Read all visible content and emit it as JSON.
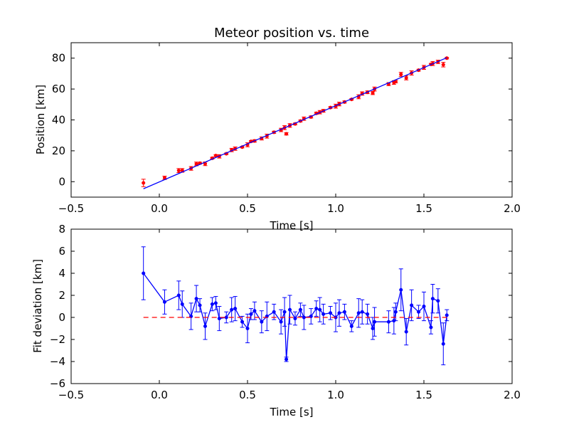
{
  "chart_data": [
    {
      "type": "scatter",
      "title": "Meteor position vs. time",
      "xlabel": "Time [s]",
      "ylabel": "Position [km]",
      "xlim": [
        -0.5,
        2.0
      ],
      "ylim": [
        -10,
        90
      ],
      "xticks": [
        -0.5,
        0.0,
        0.5,
        1.0,
        1.5,
        2.0
      ],
      "xtick_labels": [
        "−0.5",
        "0.0",
        "0.5",
        "1.0",
        "1.5",
        "2.0"
      ],
      "yticks": [
        0,
        20,
        40,
        60,
        80
      ],
      "ytick_labels": [
        "0",
        "20",
        "40",
        "60",
        "80"
      ],
      "grid": false,
      "series": [
        {
          "kind": "points-with-errorbars",
          "color": "#ff0000",
          "x": [
            -0.09,
            0.03,
            0.11,
            0.13,
            0.18,
            0.21,
            0.23,
            0.26,
            0.3,
            0.32,
            0.34,
            0.38,
            0.41,
            0.43,
            0.47,
            0.5,
            0.52,
            0.54,
            0.58,
            0.61,
            0.65,
            0.69,
            0.71,
            0.72,
            0.74,
            0.77,
            0.8,
            0.82,
            0.86,
            0.89,
            0.91,
            0.93,
            0.97,
            1.0,
            1.02,
            1.05,
            1.09,
            1.13,
            1.15,
            1.18,
            1.21,
            1.22,
            1.3,
            1.33,
            1.34,
            1.37,
            1.4,
            1.43,
            1.47,
            1.5,
            1.54,
            1.55,
            1.58,
            1.61,
            1.63
          ],
          "y": [
            -0.8,
            2.5,
            7.2,
            7.3,
            8.6,
            11.5,
            12.0,
            11.6,
            15.2,
            16.9,
            16.4,
            18.1,
            20.5,
            21.4,
            22.4,
            23.9,
            26.1,
            26.4,
            28.0,
            29.5,
            32.0,
            33.5,
            35.0,
            31.0,
            36.4,
            37.4,
            39.3,
            40.8,
            41.9,
            44.3,
            45.0,
            45.9,
            48.0,
            48.9,
            50.3,
            51.6,
            53.3,
            55.0,
            57.1,
            57.9,
            57.4,
            60.0,
            63.2,
            64.2,
            64.8,
            69.5,
            67.2,
            70.4,
            72.2,
            74.0,
            76.0,
            76.5,
            77.6,
            75.8,
            80.0
          ],
          "yerr": [
            2.4,
            1.1,
            1.3,
            1.2,
            1.2,
            1.2,
            0.6,
            1.2,
            0.6,
            0.6,
            1.1,
            0.5,
            1.1,
            1.1,
            0.5,
            1.3,
            0.5,
            0.8,
            1.0,
            1.3,
            0.7,
            1.1,
            1.3,
            0.8,
            1.2,
            0.6,
            0.6,
            1.1,
            0.7,
            0.7,
            1.1,
            0.9,
            0.6,
            1.3,
            1.2,
            0.7,
            0.5,
            1.3,
            1.1,
            0.9,
            1.0,
            1.3,
            1.0,
            1.2,
            0.8,
            1.3,
            1.3,
            1.4,
            0.6,
            1.3,
            0.6,
            1.3,
            1.1,
            1.5,
            0.5
          ]
        },
        {
          "kind": "fit-line",
          "color": "#0000ff",
          "x": [
            -0.09,
            1.63
          ],
          "y": [
            -4.6,
            80.3
          ]
        }
      ]
    },
    {
      "type": "line",
      "title": "",
      "xlabel": "Time [s]",
      "ylabel": "Fit deviation [km]",
      "xlim": [
        -0.5,
        2.0
      ],
      "ylim": [
        -6,
        8
      ],
      "xticks": [
        -0.5,
        0.0,
        0.5,
        1.0,
        1.5,
        2.0
      ],
      "xtick_labels": [
        "−0.5",
        "0.0",
        "0.5",
        "1.0",
        "1.5",
        "2.0"
      ],
      "yticks": [
        -6,
        -4,
        -2,
        0,
        2,
        4,
        6,
        8
      ],
      "ytick_labels": [
        "−6",
        "−4",
        "−2",
        "0",
        "2",
        "4",
        "6",
        "8"
      ],
      "grid": false,
      "series": [
        {
          "kind": "line-with-errorbars",
          "color": "#0000ff",
          "x": [
            -0.09,
            0.03,
            0.11,
            0.13,
            0.18,
            0.21,
            0.23,
            0.26,
            0.3,
            0.32,
            0.34,
            0.38,
            0.41,
            0.43,
            0.47,
            0.5,
            0.52,
            0.54,
            0.58,
            0.61,
            0.65,
            0.69,
            0.71,
            0.72,
            0.74,
            0.77,
            0.8,
            0.82,
            0.86,
            0.89,
            0.91,
            0.93,
            0.97,
            1.0,
            1.02,
            1.05,
            1.09,
            1.13,
            1.15,
            1.18,
            1.21,
            1.22,
            1.3,
            1.33,
            1.34,
            1.37,
            1.4,
            1.43,
            1.47,
            1.5,
            1.54,
            1.55,
            1.58,
            1.61,
            1.63
          ],
          "y": [
            4.0,
            1.4,
            2.0,
            1.2,
            0.1,
            1.7,
            1.1,
            -0.8,
            1.2,
            1.3,
            -0.1,
            0.0,
            0.7,
            0.8,
            -0.4,
            -1.0,
            0.3,
            0.6,
            -0.4,
            0.1,
            0.5,
            -0.4,
            0.5,
            -3.8,
            0.7,
            -0.1,
            0.7,
            0.0,
            0.1,
            0.8,
            0.7,
            0.3,
            0.4,
            0.0,
            0.4,
            0.5,
            -0.8,
            0.4,
            0.5,
            0.3,
            -1.0,
            -0.4,
            -0.4,
            -0.3,
            0.5,
            2.5,
            -1.3,
            1.1,
            0.5,
            1.0,
            -0.9,
            1.7,
            1.5,
            -2.4,
            0.2
          ],
          "yerr": [
            2.4,
            1.1,
            1.3,
            1.2,
            1.2,
            1.2,
            0.6,
            1.2,
            0.6,
            0.6,
            1.1,
            0.5,
            1.1,
            1.1,
            0.5,
            1.3,
            0.5,
            0.8,
            1.0,
            1.3,
            0.7,
            1.1,
            1.3,
            0.2,
            1.3,
            0.6,
            0.6,
            1.1,
            0.7,
            0.7,
            1.1,
            0.9,
            0.6,
            1.3,
            1.2,
            0.7,
            0.5,
            1.3,
            1.1,
            0.9,
            1.0,
            1.3,
            1.0,
            1.2,
            0.8,
            1.9,
            1.2,
            1.4,
            0.6,
            1.3,
            0.6,
            1.3,
            1.1,
            1.9,
            0.5
          ]
        },
        {
          "kind": "zero-reference",
          "color": "#ff0000",
          "style": "dashed",
          "x": [
            -0.09,
            1.63
          ],
          "y": [
            0,
            0
          ]
        }
      ]
    }
  ]
}
